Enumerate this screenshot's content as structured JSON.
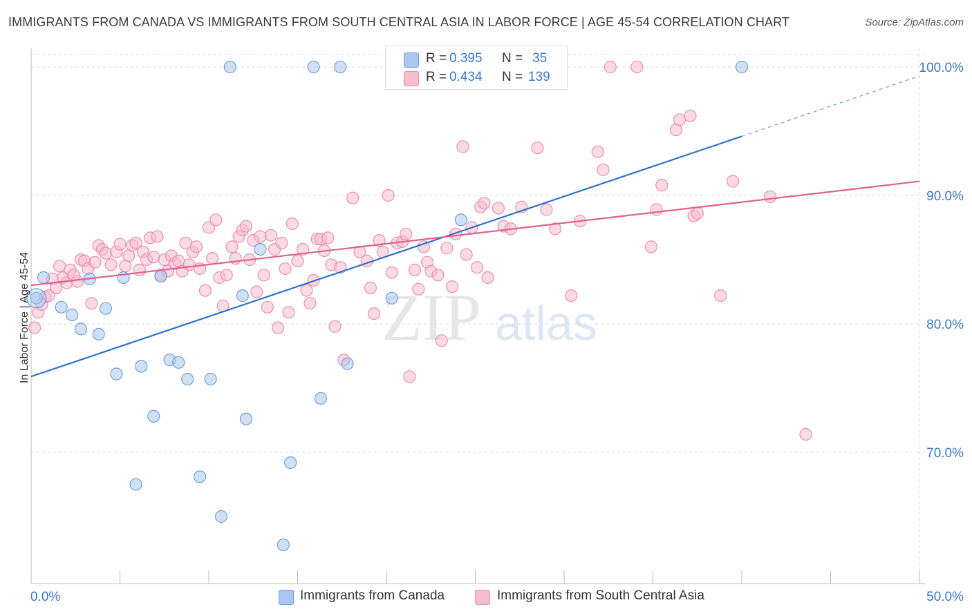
{
  "header": {
    "title": "IMMIGRANTS FROM CANADA VS IMMIGRANTS FROM SOUTH CENTRAL ASIA IN LABOR FORCE | AGE 45-54 CORRELATION CHART",
    "source": "Source: ZipAtlas.com"
  },
  "watermark": {
    "zip": "ZIP",
    "atlas": "atlas"
  },
  "legend": {
    "r_label": "R =",
    "n_label": "N =",
    "series": [
      {
        "name": "Immigrants from Canada",
        "r": "0.395",
        "n": "35"
      },
      {
        "name": "Immigrants from South Central Asia",
        "r": "0.434",
        "n": "139"
      }
    ]
  },
  "colors": {
    "canada_fill": "#aac8ef",
    "canada_stroke": "#6f9fd9",
    "canada_line": "#2f6fcc",
    "asia_fill": "#f6bcd0",
    "asia_stroke": "#ea8fae",
    "asia_line": "#e0608c",
    "value_text": "#3a78c9",
    "grid": "#d9d9d9"
  },
  "chart_data": {
    "type": "scatter",
    "title": "IMMIGRANTS FROM CANADA VS IMMIGRANTS FROM SOUTH CENTRAL ASIA IN LABOR FORCE | AGE 45-54 CORRELATION CHART",
    "xlabel": "",
    "ylabel": "In Labor Force | Age 45-54",
    "xlim": [
      0,
      50
    ],
    "ylim": [
      60,
      101
    ],
    "x_tick_labels": [
      "0.0%",
      "50.0%"
    ],
    "y_ticks": [
      70,
      80,
      90,
      100
    ],
    "y_tick_labels": [
      "70.0%",
      "80.0%",
      "90.0%",
      "100.0%"
    ],
    "grid": true,
    "legend_position": "top-center",
    "series": [
      {
        "name": "Immigrants from Canada",
        "r": 0.395,
        "n": 35,
        "trend": {
          "x0": 0,
          "y0": 75.9,
          "x1": 40,
          "y1": 94.6,
          "dash_to_x": 50,
          "dash_to_y": 99.3
        },
        "points": [
          [
            0.3,
            82.0
          ],
          [
            0.7,
            83.6
          ],
          [
            1.7,
            81.3
          ],
          [
            2.3,
            80.7
          ],
          [
            2.8,
            79.6
          ],
          [
            3.3,
            83.5
          ],
          [
            3.8,
            79.2
          ],
          [
            4.2,
            81.2
          ],
          [
            4.8,
            76.1
          ],
          [
            5.2,
            83.6
          ],
          [
            6.2,
            76.7
          ],
          [
            6.9,
            72.8
          ],
          [
            7.3,
            83.7
          ],
          [
            7.8,
            77.2
          ],
          [
            8.3,
            77.0
          ],
          [
            8.8,
            75.7
          ],
          [
            9.5,
            68.1
          ],
          [
            10.1,
            75.7
          ],
          [
            10.7,
            65.0
          ],
          [
            11.2,
            100.0
          ],
          [
            11.9,
            82.2
          ],
          [
            12.1,
            72.6
          ],
          [
            12.9,
            85.8
          ],
          [
            14.2,
            62.8
          ],
          [
            14.6,
            69.2
          ],
          [
            15.9,
            100.0
          ],
          [
            16.3,
            74.2
          ],
          [
            17.4,
            100.0
          ],
          [
            17.8,
            76.9
          ],
          [
            20.3,
            82.0
          ],
          [
            20.8,
            100.0
          ],
          [
            24.2,
            88.1
          ],
          [
            26.0,
            100.0
          ],
          [
            40.0,
            100.0
          ],
          [
            5.9,
            67.5
          ]
        ]
      },
      {
        "name": "Immigrants from South Central Asia",
        "r": 0.434,
        "n": 139,
        "trend": {
          "x0": 0,
          "y0": 83.0,
          "x1": 50,
          "y1": 91.1
        },
        "points": [
          [
            0.2,
            79.7
          ],
          [
            0.4,
            80.9
          ],
          [
            0.6,
            81.5
          ],
          [
            0.8,
            82.1
          ],
          [
            1.0,
            82.2
          ],
          [
            1.2,
            83.5
          ],
          [
            1.4,
            82.8
          ],
          [
            1.6,
            84.5
          ],
          [
            1.8,
            83.6
          ],
          [
            2.0,
            83.2
          ],
          [
            2.2,
            84.2
          ],
          [
            2.4,
            83.8
          ],
          [
            2.6,
            83.3
          ],
          [
            2.8,
            85.0
          ],
          [
            3.0,
            84.9
          ],
          [
            3.2,
            84.3
          ],
          [
            3.4,
            81.6
          ],
          [
            3.6,
            84.8
          ],
          [
            3.8,
            86.1
          ],
          [
            4.0,
            85.8
          ],
          [
            4.2,
            85.5
          ],
          [
            4.5,
            84.6
          ],
          [
            4.8,
            85.6
          ],
          [
            5.0,
            86.2
          ],
          [
            5.3,
            84.5
          ],
          [
            5.5,
            85.3
          ],
          [
            5.7,
            86.1
          ],
          [
            5.9,
            86.3
          ],
          [
            6.1,
            84.2
          ],
          [
            6.3,
            85.6
          ],
          [
            6.5,
            85.0
          ],
          [
            6.7,
            86.7
          ],
          [
            6.9,
            85.2
          ],
          [
            7.1,
            86.8
          ],
          [
            7.3,
            83.8
          ],
          [
            7.5,
            85.0
          ],
          [
            7.7,
            84.1
          ],
          [
            7.9,
            85.3
          ],
          [
            8.1,
            84.7
          ],
          [
            8.3,
            84.9
          ],
          [
            8.5,
            84.1
          ],
          [
            8.7,
            86.3
          ],
          [
            8.9,
            84.6
          ],
          [
            9.1,
            85.6
          ],
          [
            9.3,
            86.0
          ],
          [
            9.5,
            84.3
          ],
          [
            9.8,
            82.6
          ],
          [
            10.0,
            87.5
          ],
          [
            10.2,
            85.1
          ],
          [
            10.4,
            88.1
          ],
          [
            10.6,
            83.6
          ],
          [
            10.8,
            81.4
          ],
          [
            11.0,
            83.8
          ],
          [
            11.3,
            86.0
          ],
          [
            11.5,
            85.1
          ],
          [
            11.7,
            86.8
          ],
          [
            11.9,
            87.3
          ],
          [
            12.1,
            87.6
          ],
          [
            12.3,
            85.0
          ],
          [
            12.5,
            86.5
          ],
          [
            12.7,
            82.5
          ],
          [
            12.9,
            86.8
          ],
          [
            13.1,
            83.8
          ],
          [
            13.3,
            81.3
          ],
          [
            13.5,
            86.9
          ],
          [
            13.7,
            85.8
          ],
          [
            13.9,
            79.7
          ],
          [
            14.1,
            86.3
          ],
          [
            14.3,
            84.3
          ],
          [
            14.5,
            80.9
          ],
          [
            14.7,
            87.8
          ],
          [
            15.0,
            84.9
          ],
          [
            15.3,
            85.8
          ],
          [
            15.5,
            82.6
          ],
          [
            15.7,
            81.6
          ],
          [
            15.9,
            83.4
          ],
          [
            16.1,
            86.6
          ],
          [
            16.3,
            86.6
          ],
          [
            16.5,
            85.7
          ],
          [
            16.7,
            86.7
          ],
          [
            16.9,
            84.6
          ],
          [
            17.1,
            79.8
          ],
          [
            17.4,
            84.4
          ],
          [
            17.6,
            77.2
          ],
          [
            18.1,
            89.8
          ],
          [
            18.5,
            85.6
          ],
          [
            18.9,
            84.9
          ],
          [
            19.1,
            82.8
          ],
          [
            19.3,
            80.8
          ],
          [
            19.6,
            86.5
          ],
          [
            19.8,
            85.6
          ],
          [
            20.1,
            90.0
          ],
          [
            20.3,
            84.0
          ],
          [
            20.6,
            86.3
          ],
          [
            20.9,
            86.4
          ],
          [
            21.1,
            87.0
          ],
          [
            21.3,
            75.9
          ],
          [
            21.6,
            84.2
          ],
          [
            21.8,
            82.7
          ],
          [
            22.1,
            86.0
          ],
          [
            22.3,
            84.8
          ],
          [
            22.5,
            84.1
          ],
          [
            22.9,
            83.8
          ],
          [
            23.1,
            78.7
          ],
          [
            23.4,
            85.9
          ],
          [
            23.7,
            82.9
          ],
          [
            23.9,
            87.0
          ],
          [
            24.3,
            93.8
          ],
          [
            24.5,
            85.4
          ],
          [
            24.8,
            87.5
          ],
          [
            25.1,
            84.4
          ],
          [
            25.3,
            89.1
          ],
          [
            25.5,
            89.4
          ],
          [
            25.7,
            83.6
          ],
          [
            26.3,
            89.0
          ],
          [
            26.6,
            87.6
          ],
          [
            27.0,
            87.4
          ],
          [
            27.6,
            89.1
          ],
          [
            28.5,
            93.7
          ],
          [
            29.0,
            88.9
          ],
          [
            29.5,
            87.4
          ],
          [
            30.4,
            82.2
          ],
          [
            30.9,
            88.0
          ],
          [
            31.9,
            93.4
          ],
          [
            32.2,
            92.0
          ],
          [
            34.1,
            100.0
          ],
          [
            34.9,
            86.0
          ],
          [
            35.2,
            88.9
          ],
          [
            35.5,
            90.8
          ],
          [
            36.3,
            95.1
          ],
          [
            36.5,
            95.9
          ],
          [
            37.1,
            96.2
          ],
          [
            37.3,
            88.4
          ],
          [
            37.5,
            88.6
          ],
          [
            38.8,
            82.2
          ],
          [
            39.5,
            91.1
          ],
          [
            41.6,
            89.9
          ],
          [
            43.6,
            71.4
          ],
          [
            32.6,
            100.0
          ]
        ]
      }
    ]
  }
}
